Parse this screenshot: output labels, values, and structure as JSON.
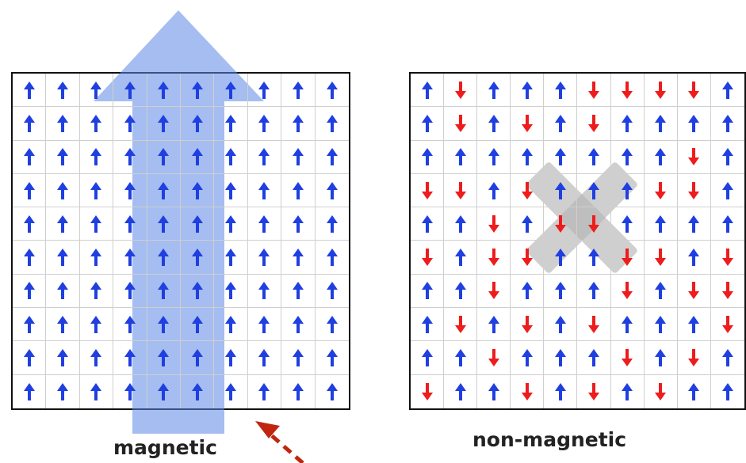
{
  "colors": {
    "up_arrow": "#1f3fe0",
    "down_arrow": "#ee1c1c",
    "grid_line": "#cfcfcf",
    "frame": "#111111",
    "big_arrow": "#5b86e3",
    "cross": "#b5b5b5",
    "dashed_arrow": "#c0260f"
  },
  "panels": [
    {
      "id": "magnetic",
      "caption": "magnetic",
      "spins": [
        "UUUUUUUUUU",
        "UUUUUUUUUU",
        "UUUUUUUUUU",
        "UUUUUUUUUU",
        "UUUUUUUUUU",
        "UUUUUUUUUU",
        "UUUUUUUUUU",
        "UUUUUUUUUU",
        "UUUUUUUUUU",
        "UUUUUUUUUU"
      ],
      "overlay_icon": "large-up-arrow-icon"
    },
    {
      "id": "non-magnetic",
      "caption": "non-magnetic",
      "spins": [
        "UDUUUDDDDU",
        "UDUDUDUUUU",
        "UUUUUUUUDU",
        "DDUDUUUDDU",
        "UUDUDDUUUU",
        "DUDDUUDDUD",
        "UUDUUUDUDD",
        "UDUDUDUUUD",
        "UUDUUUDUDU",
        "DUUDUDUDUU"
      ],
      "overlay_icon": "cross-icon"
    }
  ],
  "pointer_icon": "dashed-arrow-icon"
}
